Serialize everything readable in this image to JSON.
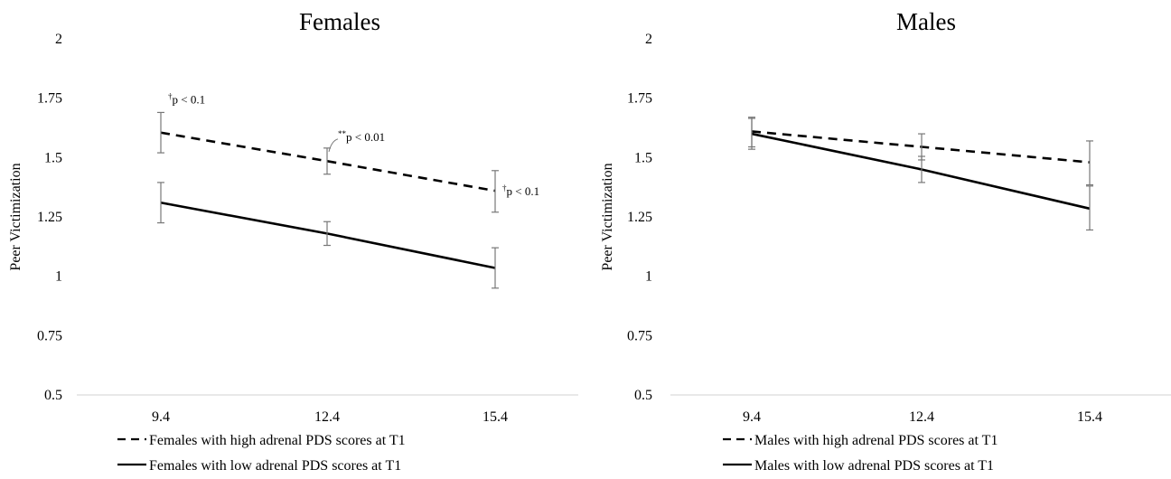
{
  "chart_data": [
    {
      "type": "line",
      "title": "Females",
      "ylabel": "Peer Victimization",
      "xlabel": "",
      "categories": [
        "9.4",
        "12.4",
        "15.4"
      ],
      "yticks": [
        "0.5",
        "0.75",
        "1",
        "1.25",
        "1.5",
        "1.75",
        "2"
      ],
      "ylim": [
        0.5,
        2
      ],
      "grid": false,
      "legend_position": "bottom",
      "series": [
        {
          "name": "Females with high adrenal PDS scores at T1",
          "style": "dashed",
          "values": [
            1.605,
            1.485,
            1.36
          ],
          "error_low": [
            1.52,
            1.43,
            1.27
          ],
          "error_high": [
            1.69,
            1.54,
            1.445
          ]
        },
        {
          "name": "Females with low adrenal PDS scores at T1",
          "style": "solid",
          "values": [
            1.31,
            1.18,
            1.035
          ],
          "error_low": [
            1.225,
            1.13,
            0.95
          ],
          "error_high": [
            1.395,
            1.23,
            1.12
          ]
        }
      ],
      "annotations": [
        {
          "mark": "†",
          "text": "p < 0.1",
          "x": "9.4",
          "y": 1.69
        },
        {
          "mark": "**",
          "text": "p < 0.01",
          "x": "12.4",
          "y": 1.54
        },
        {
          "mark": "†",
          "text": "p < 0.1",
          "x": "15.4",
          "y": 1.36
        }
      ]
    },
    {
      "type": "line",
      "title": "Males",
      "ylabel": "Peer Victimization",
      "xlabel": "",
      "categories": [
        "9.4",
        "12.4",
        "15.4"
      ],
      "yticks": [
        "0.5",
        "0.75",
        "1",
        "1.25",
        "1.5",
        "1.75",
        "2"
      ],
      "ylim": [
        0.5,
        2
      ],
      "grid": false,
      "legend_position": "bottom",
      "series": [
        {
          "name": "Males with high adrenal PDS scores at T1",
          "style": "dashed",
          "values": [
            1.61,
            1.545,
            1.48
          ],
          "error_low": [
            1.545,
            1.49,
            1.385
          ],
          "error_high": [
            1.67,
            1.6,
            1.57
          ]
        },
        {
          "name": "Males with low adrenal PDS scores at T1",
          "style": "solid",
          "values": [
            1.6,
            1.45,
            1.285
          ],
          "error_low": [
            1.535,
            1.395,
            1.195
          ],
          "error_high": [
            1.665,
            1.505,
            1.38
          ]
        }
      ],
      "annotations": []
    }
  ]
}
